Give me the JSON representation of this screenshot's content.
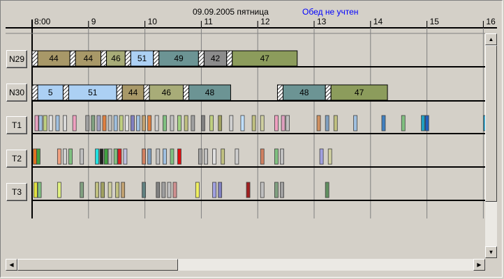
{
  "header": {
    "date": "09.09.2005 пятница",
    "lunch_note": "Обед не учтен",
    "lunch_note_color": "#0000ff",
    "hours": [
      "8:00",
      "9",
      "10",
      "11",
      "12",
      "13",
      "14",
      "15",
      "16"
    ]
  },
  "rows": [
    {
      "label": "N29",
      "type": "orders",
      "blocks": [
        {
          "start": 8.0,
          "end": 8.67,
          "label": "44",
          "color": "#a89868"
        },
        {
          "start": 8.67,
          "end": 9.22,
          "label": "44",
          "color": "#a89868"
        },
        {
          "start": 9.22,
          "end": 9.65,
          "label": "46",
          "color": "#a8ac78"
        },
        {
          "start": 9.65,
          "end": 10.15,
          "label": "51",
          "color": "#acd0f4"
        },
        {
          "start": 10.15,
          "end": 10.95,
          "label": "49",
          "color": "#6c9494"
        },
        {
          "start": 10.95,
          "end": 11.45,
          "label": "42",
          "color": "#8c8c8c"
        },
        {
          "start": 11.45,
          "end": 12.7,
          "label": "47",
          "color": "#8c9c5c"
        }
      ]
    },
    {
      "label": "N30",
      "type": "orders",
      "blocks": [
        {
          "start": 8.0,
          "end": 8.55,
          "label": "5",
          "color": "#acd0f4"
        },
        {
          "start": 8.55,
          "end": 9.5,
          "label": "51",
          "color": "#acd0f4"
        },
        {
          "start": 9.5,
          "end": 9.98,
          "label": "44",
          "color": "#a89868"
        },
        {
          "start": 9.98,
          "end": 10.68,
          "label": "46",
          "color": "#a8ac78"
        },
        {
          "start": 10.68,
          "end": 11.52,
          "label": "48",
          "color": "#6c9494"
        },
        {
          "start": 12.35,
          "end": 13.2,
          "label": "48",
          "color": "#6c9494"
        },
        {
          "start": 13.2,
          "end": 14.3,
          "label": "47",
          "color": "#8c9c5c"
        }
      ]
    },
    {
      "label": "T1",
      "type": "events",
      "ticks": [
        {
          "t": 8.05,
          "c": "#e8a0c0"
        },
        {
          "t": 8.12,
          "c": "#a0c0e0"
        },
        {
          "t": 8.2,
          "c": "#c0d080"
        },
        {
          "t": 8.3,
          "c": "#e0e0e0"
        },
        {
          "t": 8.42,
          "c": "#a0c0e0"
        },
        {
          "t": 8.55,
          "c": "#d8d8d8"
        },
        {
          "t": 8.72,
          "c": "#f0a0c0"
        },
        {
          "t": 8.95,
          "c": "#a0a0a0"
        },
        {
          "t": 9.05,
          "c": "#80a080"
        },
        {
          "t": 9.15,
          "c": "#a0a0c0"
        },
        {
          "t": 9.25,
          "c": "#e08040"
        },
        {
          "t": 9.35,
          "c": "#c0c0c0"
        },
        {
          "t": 9.45,
          "c": "#a0c0e0"
        },
        {
          "t": 9.55,
          "c": "#c0d080"
        },
        {
          "t": 9.65,
          "c": "#e0e0e0"
        },
        {
          "t": 9.75,
          "c": "#8080c0"
        },
        {
          "t": 9.85,
          "c": "#a0c0e0"
        },
        {
          "t": 9.95,
          "c": "#c0a070"
        },
        {
          "t": 10.05,
          "c": "#e08040"
        },
        {
          "t": 10.18,
          "c": "#d0d0d0"
        },
        {
          "t": 10.32,
          "c": "#80c080"
        },
        {
          "t": 10.45,
          "c": "#c0c0c0"
        },
        {
          "t": 10.58,
          "c": "#a0d080"
        },
        {
          "t": 10.7,
          "c": "#c0c080"
        },
        {
          "t": 10.82,
          "c": "#a0a0a0"
        },
        {
          "t": 11.0,
          "c": "#808080"
        },
        {
          "t": 11.15,
          "c": "#c0d080"
        },
        {
          "t": 11.3,
          "c": "#a0a060"
        },
        {
          "t": 11.5,
          "c": "#d0d0d0"
        },
        {
          "t": 11.7,
          "c": "#c0e0ff"
        },
        {
          "t": 11.9,
          "c": "#c0c080"
        },
        {
          "t": 12.05,
          "c": "#d0d0a0"
        },
        {
          "t": 12.3,
          "c": "#f0a0c0"
        },
        {
          "t": 12.42,
          "c": "#e0a0c0"
        },
        {
          "t": 12.5,
          "c": "#c0c0c0"
        },
        {
          "t": 13.05,
          "c": "#d09060"
        },
        {
          "t": 13.2,
          "c": "#80a0c0"
        },
        {
          "t": 13.35,
          "c": "#c0c080"
        },
        {
          "t": 13.7,
          "c": "#a0c0e0"
        },
        {
          "t": 14.2,
          "c": "#4080c0"
        },
        {
          "t": 14.55,
          "c": "#80c080"
        },
        {
          "t": 14.9,
          "c": "#20a0c0"
        },
        {
          "t": 14.97,
          "c": "#2060c0"
        },
        {
          "t": 16.0,
          "c": "#40a0c0"
        }
      ]
    },
    {
      "label": "T2",
      "type": "events",
      "ticks": [
        {
          "t": 8.02,
          "c": "#e07020"
        },
        {
          "t": 8.08,
          "c": "#40a040"
        },
        {
          "t": 8.45,
          "c": "#f0a080"
        },
        {
          "t": 8.55,
          "c": "#d0d0d0"
        },
        {
          "t": 8.65,
          "c": "#80c080"
        },
        {
          "t": 8.85,
          "c": "#c0c0c0"
        },
        {
          "t": 9.12,
          "c": "#20e0e0"
        },
        {
          "t": 9.2,
          "c": "#202020"
        },
        {
          "t": 9.28,
          "c": "#40a040"
        },
        {
          "t": 9.35,
          "c": "#c0c0c0"
        },
        {
          "t": 9.45,
          "c": "#80c080"
        },
        {
          "t": 9.52,
          "c": "#e02020"
        },
        {
          "t": 9.62,
          "c": "#c0c0e0"
        },
        {
          "t": 9.95,
          "c": "#d08060"
        },
        {
          "t": 10.05,
          "c": "#80a0c0"
        },
        {
          "t": 10.2,
          "c": "#c0c0c0"
        },
        {
          "t": 10.32,
          "c": "#a0c0e0"
        },
        {
          "t": 10.45,
          "c": "#80c080"
        },
        {
          "t": 10.58,
          "c": "#e01010"
        },
        {
          "t": 10.95,
          "c": "#a0a0a0"
        },
        {
          "t": 11.05,
          "c": "#c0c0c0"
        },
        {
          "t": 11.2,
          "c": "#e0e0e0"
        },
        {
          "t": 11.35,
          "c": "#c0c080"
        },
        {
          "t": 11.6,
          "c": "#d0d0d0"
        },
        {
          "t": 12.05,
          "c": "#d08060"
        },
        {
          "t": 12.3,
          "c": "#80c080"
        },
        {
          "t": 12.4,
          "c": "#c0c0c0"
        },
        {
          "t": 13.1,
          "c": "#a0a0e0"
        },
        {
          "t": 13.25,
          "c": "#d0d0a0"
        }
      ]
    },
    {
      "label": "T3",
      "type": "events",
      "ticks": [
        {
          "t": 8.03,
          "c": "#e0e040"
        },
        {
          "t": 8.1,
          "c": "#80c080"
        },
        {
          "t": 8.45,
          "c": "#e0f080"
        },
        {
          "t": 8.85,
          "c": "#80a080"
        },
        {
          "t": 9.12,
          "c": "#c0c080"
        },
        {
          "t": 9.22,
          "c": "#a0a060"
        },
        {
          "t": 9.35,
          "c": "#d0d0a0"
        },
        {
          "t": 9.48,
          "c": "#c0c080"
        },
        {
          "t": 9.58,
          "c": "#c0a070"
        },
        {
          "t": 9.95,
          "c": "#608080"
        },
        {
          "t": 10.2,
          "c": "#808080"
        },
        {
          "t": 10.3,
          "c": "#a0a0a0"
        },
        {
          "t": 10.4,
          "c": "#c0c0c0"
        },
        {
          "t": 10.5,
          "c": "#d09090"
        },
        {
          "t": 10.9,
          "c": "#f0f060"
        },
        {
          "t": 11.2,
          "c": "#a0a0e0"
        },
        {
          "t": 11.3,
          "c": "#8080c0"
        },
        {
          "t": 11.8,
          "c": "#a02020"
        },
        {
          "t": 12.05,
          "c": "#c0c0c0"
        },
        {
          "t": 12.3,
          "c": "#80a080"
        },
        {
          "t": 12.4,
          "c": "#a0a0a0"
        },
        {
          "t": 13.2,
          "c": "#609060"
        }
      ]
    }
  ],
  "scrollbar": {
    "up_arrow": "up-arrow-icon",
    "down_arrow": "down-arrow-icon",
    "left_arrow": "left-arrow-icon",
    "right_arrow": "right-arrow-icon"
  }
}
